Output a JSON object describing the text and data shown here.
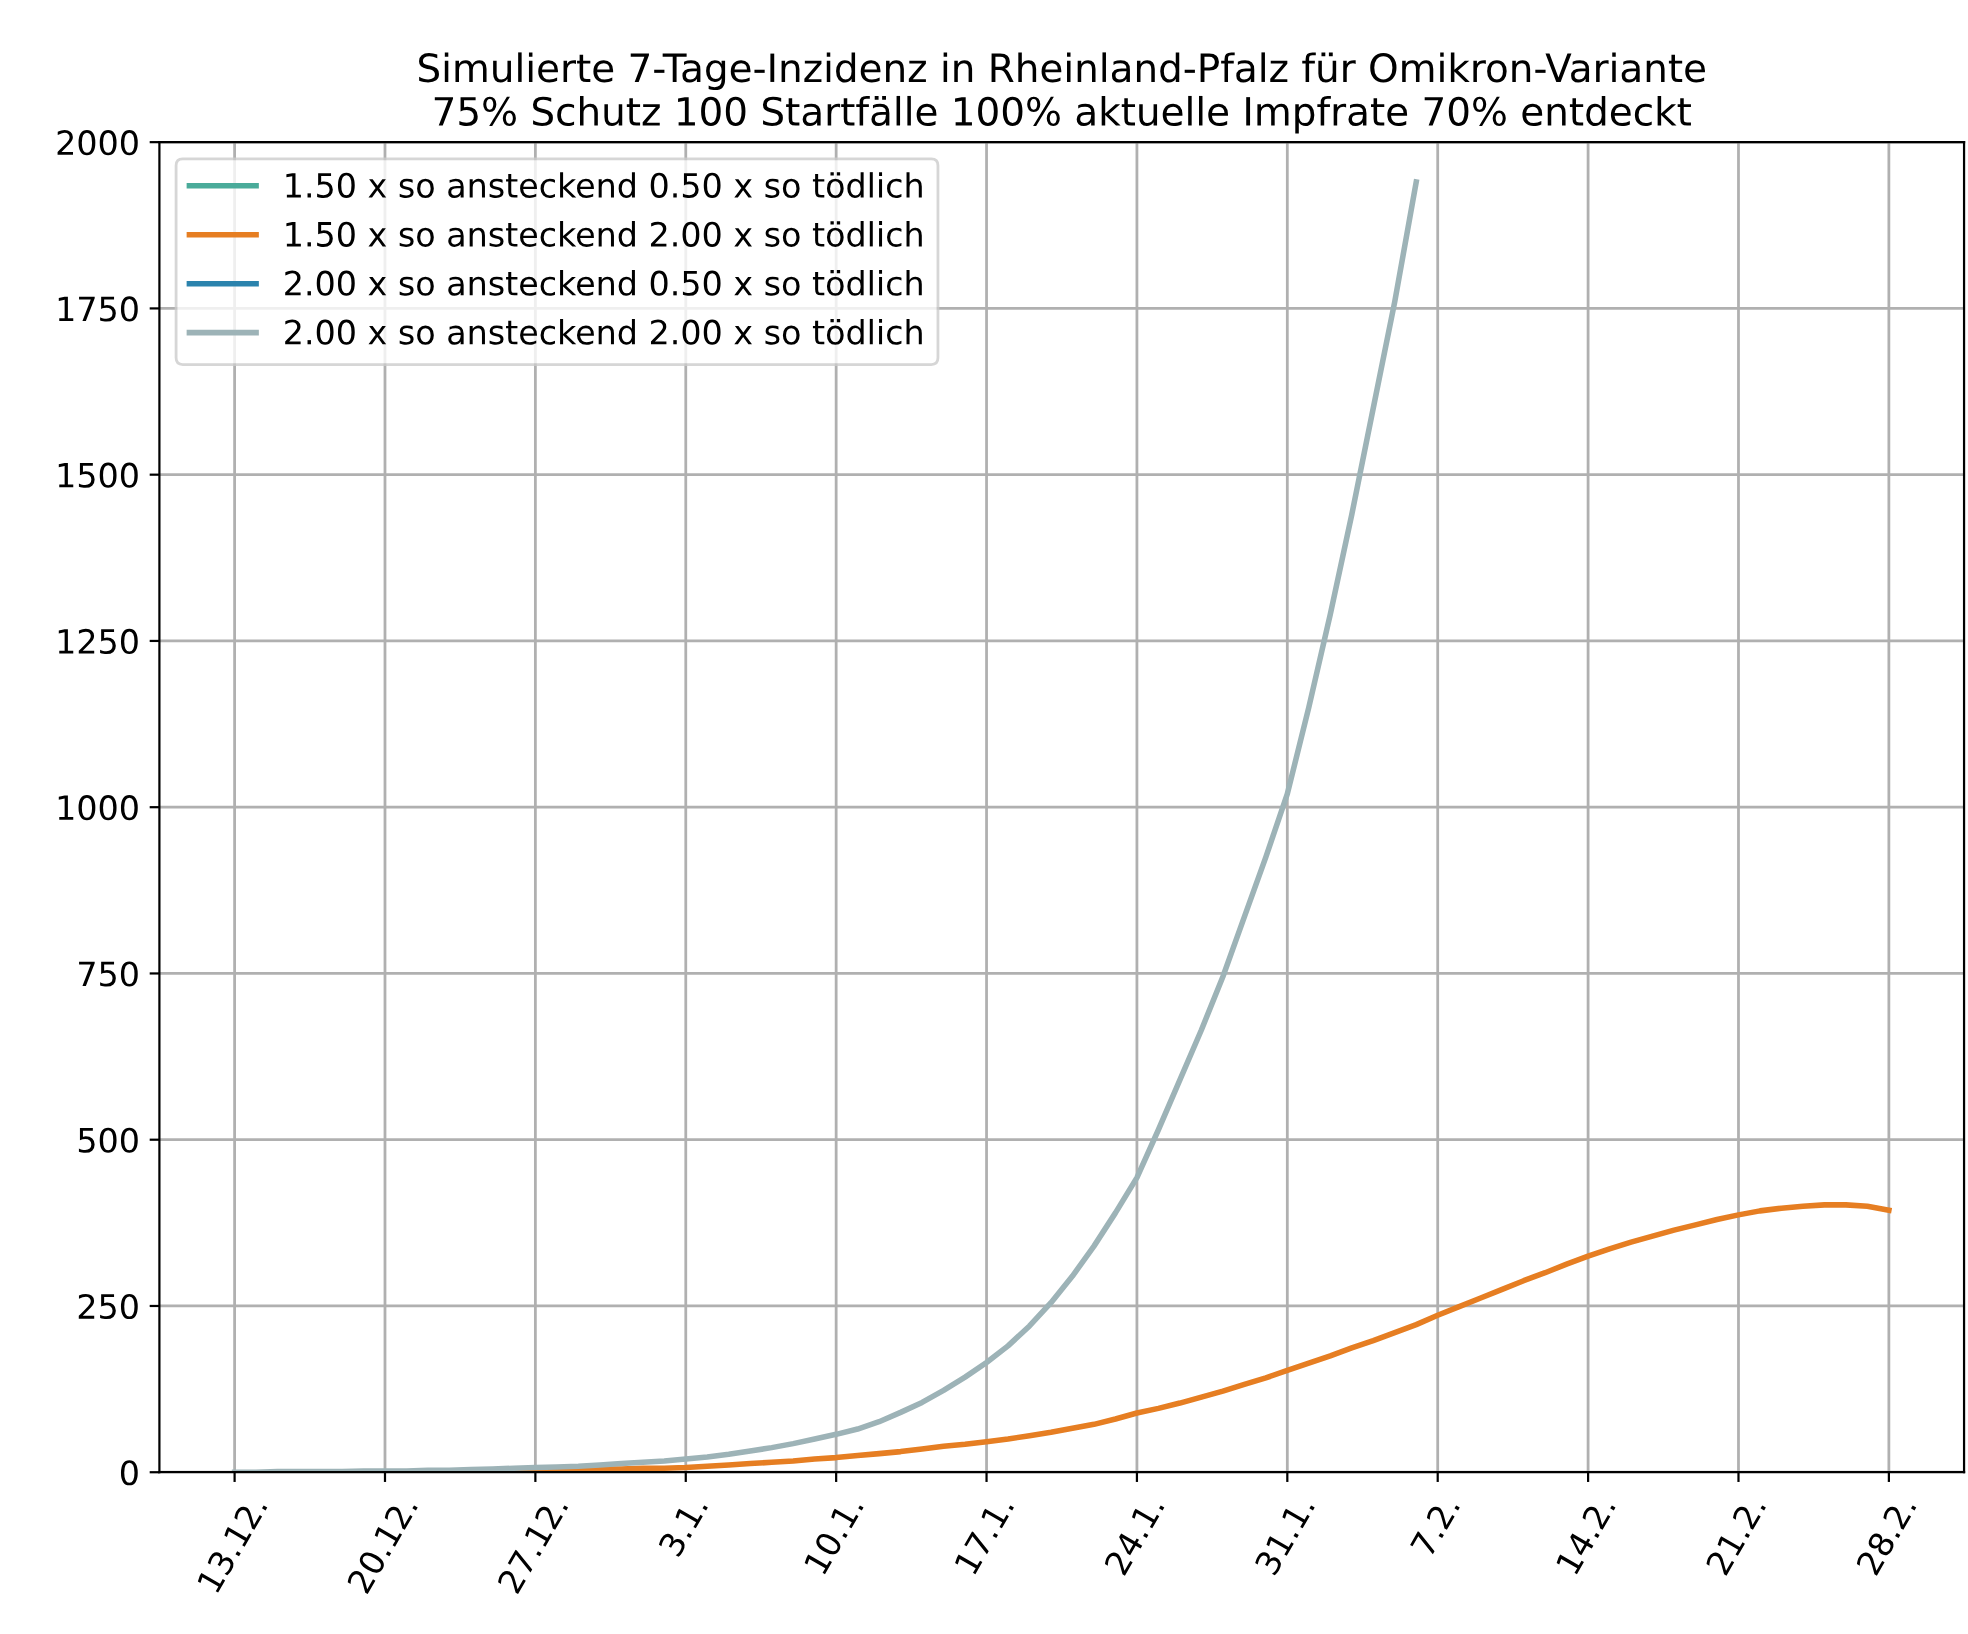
{
  "chart_data": {
    "type": "line",
    "title": "Simulierte 7-Tage-Inzidenz in Rheinland-Pfalz für Omikron-Variante\n75% Schutz 100 Startfälle 100% aktuelle Impfrate 70% entdeckt",
    "categories": [
      "13.12.",
      null,
      null,
      null,
      null,
      null,
      null,
      "20.12.",
      null,
      null,
      null,
      null,
      null,
      null,
      "27.12.",
      null,
      null,
      null,
      null,
      null,
      null,
      "3.1.",
      null,
      null,
      null,
      null,
      null,
      null,
      "10.1.",
      null,
      null,
      null,
      null,
      null,
      null,
      "17.1.",
      null,
      null,
      null,
      null,
      null,
      null,
      "24.1.",
      null,
      null,
      null,
      null,
      null,
      null,
      "31.1.",
      null,
      null,
      null,
      null,
      null,
      null,
      "7.2.",
      null,
      null,
      null,
      null,
      null,
      null,
      "14.2.",
      null,
      null,
      null,
      null,
      null,
      null,
      "21.2.",
      null,
      null,
      null,
      null,
      null,
      null,
      "28.2."
    ],
    "ylim": [
      0,
      2000
    ],
    "yticks": [
      0,
      250,
      500,
      750,
      1000,
      1250,
      1500,
      1750,
      2000
    ],
    "grid": true,
    "legend": "top left",
    "series": [
      {
        "name": "1.50 x so ansteckend 0.50 x so tödlich",
        "color": "#4aab9a",
        "values": [
          null,
          null,
          null,
          null,
          null,
          null,
          null,
          null,
          null,
          null,
          null,
          null,
          null,
          null,
          null,
          null,
          null,
          null,
          null,
          null,
          null,
          null,
          null,
          null,
          null,
          null,
          null,
          null,
          null,
          null,
          null,
          null,
          null,
          null,
          null,
          null,
          null,
          null,
          null,
          null,
          null,
          null,
          null,
          null,
          null,
          null,
          null,
          null,
          null,
          null,
          null,
          null,
          null,
          null,
          null,
          null,
          null,
          null,
          null,
          null,
          null,
          null,
          null,
          null,
          null,
          null,
          null,
          null,
          null,
          null,
          null,
          null,
          null,
          null,
          null,
          null,
          null,
          null
        ]
      },
      {
        "name": "1.50 x so ansteckend 2.00 x so tödlich",
        "color": "#e67e22",
        "values": [
          null,
          null,
          null,
          null,
          null,
          null,
          null,
          null,
          null,
          null,
          null,
          null,
          null,
          3,
          4,
          4,
          4,
          5,
          5,
          6,
          6,
          7,
          9,
          11,
          13,
          15,
          17,
          20,
          22,
          25,
          28,
          31,
          35,
          39,
          42,
          46,
          50,
          55,
          60,
          66,
          72,
          80,
          89,
          96,
          104,
          113,
          122,
          132,
          142,
          153,
          164,
          175,
          187,
          198,
          210,
          222,
          236,
          249,
          262,
          275,
          288,
          300,
          313,
          325,
          336,
          346,
          355,
          364,
          372,
          380,
          387,
          393,
          397,
          400,
          402,
          402,
          400,
          394
        ]
      },
      {
        "name": "2.00 x so ansteckend 0.50 x so tödlich",
        "color": "#2b83ad",
        "values": [
          null,
          null,
          null,
          null,
          null,
          null,
          null,
          null,
          null,
          null,
          null,
          null,
          null,
          null,
          null,
          null,
          null,
          null,
          null,
          null,
          null,
          null,
          null,
          null,
          null,
          null,
          null,
          null,
          null,
          null,
          null,
          null,
          null,
          null,
          null,
          null,
          null,
          null,
          null,
          null,
          null,
          null,
          null,
          null,
          null,
          null,
          null,
          null,
          null,
          null,
          null,
          null,
          null,
          null,
          null,
          null,
          null,
          null,
          null,
          null,
          null,
          null,
          null,
          null,
          null,
          null,
          null,
          null,
          null,
          null,
          null,
          null,
          null,
          null,
          null,
          null,
          null,
          null
        ]
      },
      {
        "name": "2.00 x so ansteckend 2.00 x so tödlich",
        "color": "#9db3b7",
        "values": [
          0,
          0,
          1,
          1,
          1,
          1,
          2,
          2,
          2,
          3,
          3,
          4,
          5,
          6,
          7,
          8,
          9,
          11,
          13,
          15,
          17,
          20,
          23,
          27,
          32,
          37,
          43,
          50,
          57,
          65,
          76,
          90,
          105,
          123,
          143,
          165,
          190,
          220,
          255,
          295,
          340,
          390,
          443,
          515,
          590,
          665,
          745,
          835,
          925,
          1020,
          1150,
          1290,
          1440,
          1600,
          1760,
          1940,
          null,
          null,
          null,
          null,
          null,
          null,
          null,
          null,
          null,
          null,
          null,
          null,
          null,
          null,
          null,
          null,
          null,
          null,
          null,
          null,
          null,
          null
        ]
      }
    ]
  }
}
